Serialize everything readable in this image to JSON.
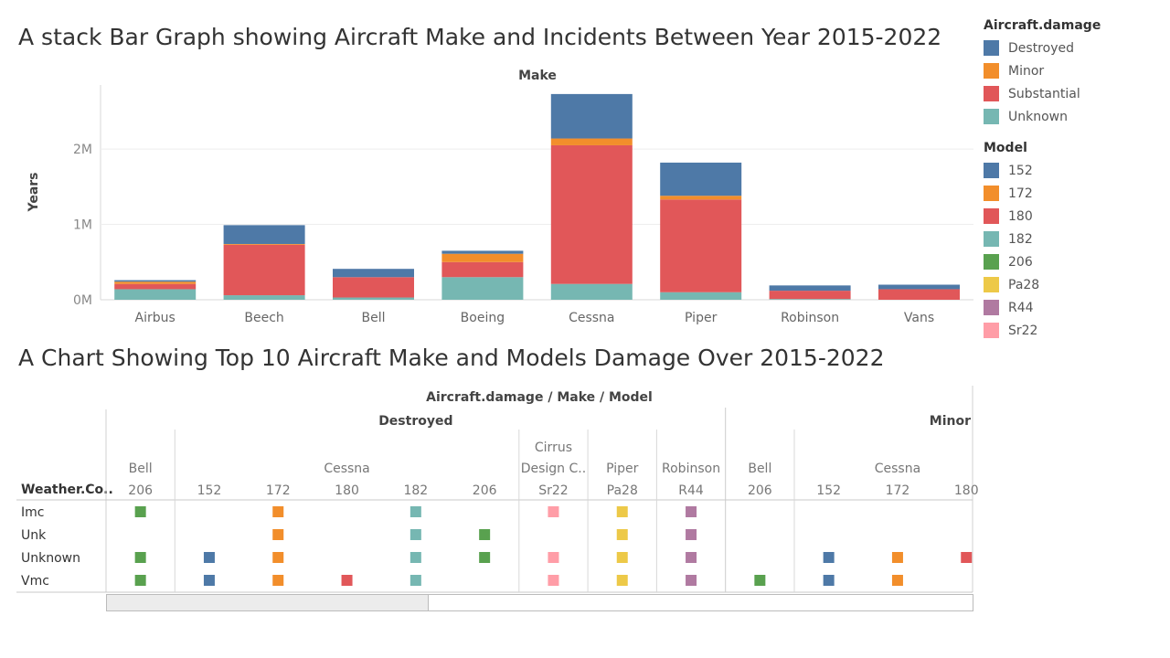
{
  "title_top": "A stack Bar Graph showing Aircraft Make and Incidents Between  Year 2015-2022",
  "title_bottom": "A Chart Showing Top 10  Aircraft Make and Models Damage Over 2015-2022",
  "colors": {
    "Destroyed": "#4e79a7",
    "Minor": "#f28e2b",
    "Substantial": "#e15759",
    "Unknown": "#76b7b2",
    "152": "#4e79a7",
    "172": "#f28e2b",
    "180": "#e15759",
    "182": "#76b7b2",
    "206": "#59a14f",
    "Pa28": "#edc948",
    "R44": "#b07aa1",
    "Sr22": "#ff9da7"
  },
  "legend_damage": {
    "title": "Aircraft.damage",
    "items": [
      "Destroyed",
      "Minor",
      "Substantial",
      "Unknown"
    ]
  },
  "legend_model": {
    "title": "Model",
    "items": [
      "152",
      "172",
      "180",
      "182",
      "206",
      "Pa28",
      "R44",
      "Sr22"
    ]
  },
  "chart_data": [
    {
      "type": "bar",
      "stacked": true,
      "title": "A stack Bar Graph showing Aircraft Make and Incidents Between  Year 2015-2022",
      "header": "Make",
      "xlabel": "",
      "ylabel": "Years",
      "ylim": [
        0,
        2850000
      ],
      "yticks": [
        0,
        1000000,
        2000000
      ],
      "ytick_labels": [
        "0M",
        "1M",
        "2M"
      ],
      "grid": true,
      "legend": "right",
      "categories": [
        "Airbus",
        "Beech",
        "Bell",
        "Boeing",
        "Cessna",
        "Piper",
        "Robinson",
        "Vans"
      ],
      "series": [
        {
          "name": "Unknown",
          "values": [
            140000,
            60000,
            30000,
            300000,
            210000,
            100000,
            10000,
            0
          ]
        },
        {
          "name": "Substantial",
          "values": [
            70000,
            670000,
            270000,
            200000,
            1840000,
            1230000,
            110000,
            140000
          ]
        },
        {
          "name": "Minor",
          "values": [
            30000,
            10000,
            0,
            110000,
            90000,
            50000,
            0,
            0
          ]
        },
        {
          "name": "Destroyed",
          "values": [
            20000,
            250000,
            110000,
            40000,
            590000,
            440000,
            70000,
            60000
          ]
        }
      ]
    },
    {
      "type": "heatmap",
      "title": "A Chart Showing Top 10  Aircraft Make and Models Damage Over 2015-2022",
      "header": "Aircraft.damage / Make / Model",
      "row_header": "Weather.Co..",
      "rows": [
        "Imc",
        "Unk",
        "Unknown",
        "Vmc"
      ],
      "damage_groups": [
        {
          "label": "Destroyed",
          "makes": [
            {
              "label": "Bell",
              "models": [
                "206"
              ]
            },
            {
              "label": "Cessna",
              "models": [
                "152",
                "172",
                "180",
                "182",
                "206"
              ]
            },
            {
              "label": "Cirrus\nDesign C..",
              "models": [
                "Sr22"
              ]
            },
            {
              "label": "Piper",
              "models": [
                "Pa28"
              ]
            },
            {
              "label": "Robinson",
              "models": [
                "R44"
              ]
            }
          ]
        },
        {
          "label": "Minor",
          "makes": [
            {
              "label": "Bell",
              "models": [
                "206"
              ]
            },
            {
              "label": "Cessna",
              "models": [
                "152",
                "172",
                "180"
              ]
            }
          ]
        }
      ],
      "presence": [
        [
          1,
          0,
          1,
          0,
          1,
          0,
          1,
          1,
          1,
          0,
          0,
          0,
          0
        ],
        [
          0,
          0,
          1,
          0,
          1,
          1,
          0,
          1,
          1,
          0,
          0,
          0,
          0
        ],
        [
          1,
          1,
          1,
          0,
          1,
          1,
          1,
          1,
          1,
          0,
          1,
          1,
          1
        ],
        [
          1,
          1,
          1,
          1,
          1,
          0,
          1,
          1,
          1,
          1,
          1,
          1,
          0
        ]
      ]
    }
  ]
}
